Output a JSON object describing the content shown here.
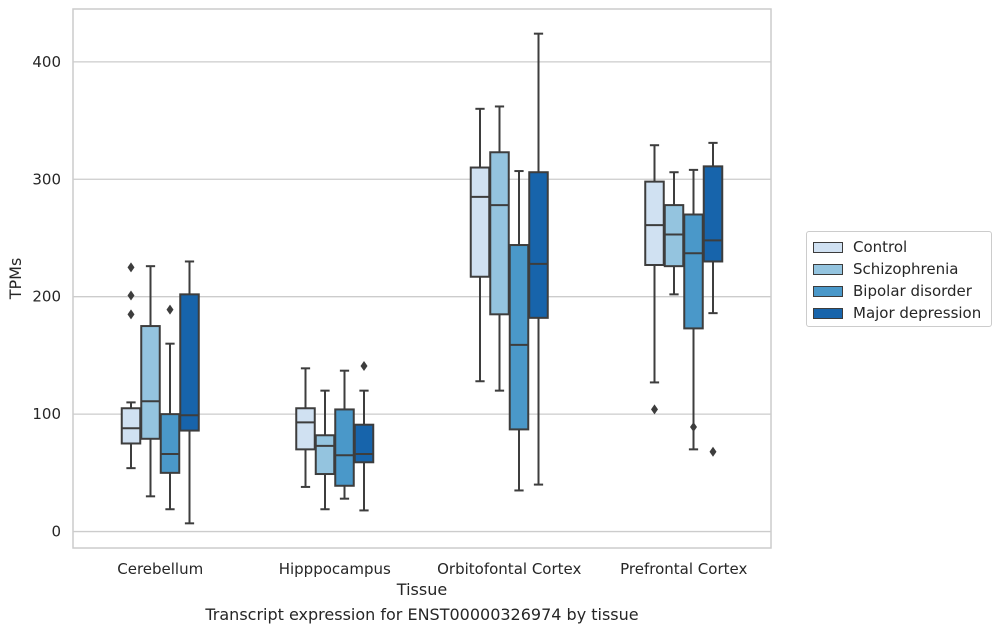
{
  "caption": "Transcript expression for ENST00000326974 by tissue",
  "chart_data": {
    "type": "box",
    "xlabel": "Tissue",
    "ylabel": "TPMs",
    "ylim": [
      -14,
      445
    ],
    "yticks": [
      0,
      100,
      200,
      300,
      400
    ],
    "grid": "horizontal",
    "legend_position": "right",
    "categories": [
      "Cerebellum",
      "Hipppocampus",
      "Orbitofontal Cortex",
      "Prefrontal Cortex"
    ],
    "series": [
      {
        "name": "Control",
        "color": "#d0e1f2",
        "boxes": [
          {
            "whisker_low": 54,
            "q1": 75,
            "median": 88,
            "q3": 105,
            "whisker_high": 110,
            "outliers": [
              225,
              201,
              185
            ]
          },
          {
            "whisker_low": 38,
            "q1": 70,
            "median": 93,
            "q3": 105,
            "whisker_high": 139,
            "outliers": []
          },
          {
            "whisker_low": 128,
            "q1": 217,
            "median": 285,
            "q3": 310,
            "whisker_high": 360,
            "outliers": []
          },
          {
            "whisker_low": 127,
            "q1": 227,
            "median": 261,
            "q3": 298,
            "whisker_high": 329,
            "outliers": [
              104
            ]
          }
        ]
      },
      {
        "name": "Schizophrenia",
        "color": "#94c4df",
        "boxes": [
          {
            "whisker_low": 30,
            "q1": 79,
            "median": 111,
            "q3": 175,
            "whisker_high": 226,
            "outliers": []
          },
          {
            "whisker_low": 19,
            "q1": 49,
            "median": 73,
            "q3": 82,
            "whisker_high": 120,
            "outliers": []
          },
          {
            "whisker_low": 120,
            "q1": 185,
            "median": 278,
            "q3": 323,
            "whisker_high": 362,
            "outliers": []
          },
          {
            "whisker_low": 202,
            "q1": 226,
            "median": 253,
            "q3": 278,
            "whisker_high": 306,
            "outliers": []
          }
        ]
      },
      {
        "name": "Bipolar disorder",
        "color": "#4a98c9",
        "boxes": [
          {
            "whisker_low": 19,
            "q1": 50,
            "median": 66,
            "q3": 100,
            "whisker_high": 160,
            "outliers": [
              189
            ]
          },
          {
            "whisker_low": 28,
            "q1": 39,
            "median": 65,
            "q3": 104,
            "whisker_high": 137,
            "outliers": []
          },
          {
            "whisker_low": 35,
            "q1": 87,
            "median": 159,
            "q3": 244,
            "whisker_high": 307,
            "outliers": []
          },
          {
            "whisker_low": 70,
            "q1": 173,
            "median": 237,
            "q3": 270,
            "whisker_high": 308,
            "outliers": [
              89
            ]
          }
        ]
      },
      {
        "name": "Major depression",
        "color": "#1764ab",
        "boxes": [
          {
            "whisker_low": 7,
            "q1": 86,
            "median": 99,
            "q3": 202,
            "whisker_high": 230,
            "outliers": []
          },
          {
            "whisker_low": 18,
            "q1": 59,
            "median": 66,
            "q3": 91,
            "whisker_high": 120,
            "outliers": [
              141
            ]
          },
          {
            "whisker_low": 40,
            "q1": 182,
            "median": 228,
            "q3": 306,
            "whisker_high": 424,
            "outliers": []
          },
          {
            "whisker_low": 186,
            "q1": 230,
            "median": 248,
            "q3": 311,
            "whisker_high": 331,
            "outliers": [
              68
            ]
          }
        ]
      }
    ]
  }
}
